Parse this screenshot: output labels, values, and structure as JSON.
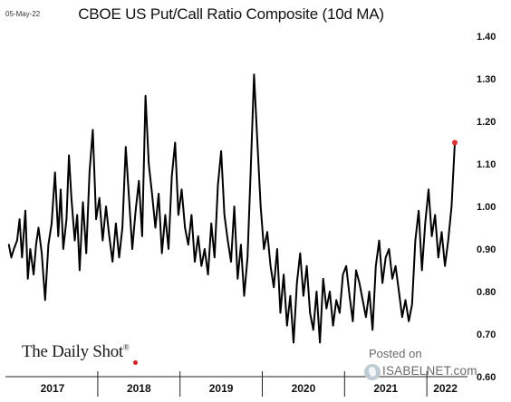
{
  "date_stamp": "05-May-22",
  "source": {
    "brand": "The Daily Shot",
    "registered": "®",
    "posted_on": "Posted on",
    "site": "ISABELNET.com"
  },
  "chart_data": {
    "type": "line",
    "title": "CBOE US Put/Call Ratio Composite (10d MA)",
    "xlabel": "",
    "ylabel": "",
    "ylim": [
      0.6,
      1.4
    ],
    "y_tick_labels": [
      "1.40",
      "1.30",
      "1.20",
      "1.10",
      "1.00",
      "0.90",
      "0.80",
      "0.70",
      "0.60"
    ],
    "y_ticks": [
      1.4,
      1.3,
      1.2,
      1.1,
      1.0,
      0.9,
      0.8,
      0.7,
      0.6
    ],
    "x_range": [
      2016.9,
      2022.45
    ],
    "x_categories": [
      "2017",
      "2018",
      "2019",
      "2020",
      "2021",
      "2022"
    ],
    "x_category_bounds": [
      2016.9,
      2018.0,
      2019.0,
      2020.0,
      2021.0,
      2022.0,
      2022.45
    ],
    "grid": false,
    "line_color": "#000000",
    "end_marker_color": "#e03030",
    "series": [
      {
        "x": [
          2016.92,
          2016.95,
          2016.98,
          2017.02,
          2017.05,
          2017.08,
          2017.12,
          2017.15,
          2017.18,
          2017.22,
          2017.25,
          2017.28,
          2017.32,
          2017.36,
          2017.4,
          2017.44,
          2017.48,
          2017.52,
          2017.55,
          2017.58,
          2017.62,
          2017.65,
          2017.68,
          2017.72,
          2017.75,
          2017.78,
          2017.82,
          2017.86,
          2017.9,
          2017.94,
          2017.98,
          2018.02,
          2018.06,
          2018.1,
          2018.14,
          2018.18,
          2018.22,
          2018.26,
          2018.3,
          2018.34,
          2018.38,
          2018.42,
          2018.46,
          2018.5,
          2018.54,
          2018.58,
          2018.62,
          2018.66,
          2018.7,
          2018.74,
          2018.78,
          2018.82,
          2018.86,
          2018.9,
          2018.94,
          2018.98,
          2019.02,
          2019.06,
          2019.1,
          2019.14,
          2019.18,
          2019.22,
          2019.26,
          2019.3,
          2019.34,
          2019.38,
          2019.42,
          2019.46,
          2019.5,
          2019.54,
          2019.58,
          2019.62,
          2019.66,
          2019.7,
          2019.74,
          2019.78,
          2019.82,
          2019.86,
          2019.9,
          2019.94,
          2019.98,
          2020.02,
          2020.06,
          2020.1,
          2020.14,
          2020.18,
          2020.22,
          2020.26,
          2020.3,
          2020.34,
          2020.38,
          2020.42,
          2020.46,
          2020.5,
          2020.54,
          2020.58,
          2020.62,
          2020.66,
          2020.7,
          2020.74,
          2020.78,
          2020.82,
          2020.86,
          2020.9,
          2020.94,
          2020.98,
          2021.02,
          2021.06,
          2021.1,
          2021.14,
          2021.18,
          2021.22,
          2021.26,
          2021.3,
          2021.34,
          2021.38,
          2021.42,
          2021.46,
          2021.5,
          2021.54,
          2021.58,
          2021.62,
          2021.66,
          2021.7,
          2021.74,
          2021.78,
          2021.82,
          2021.86,
          2021.9,
          2021.94,
          2021.98,
          2022.02,
          2022.06,
          2022.1,
          2022.14,
          2022.18,
          2022.22,
          2022.26,
          2022.3,
          2022.34
        ],
        "values": [
          0.91,
          0.88,
          0.9,
          0.92,
          0.97,
          0.88,
          0.99,
          0.83,
          0.9,
          0.84,
          0.91,
          0.95,
          0.89,
          0.78,
          0.91,
          0.96,
          1.08,
          0.93,
          1.04,
          0.9,
          0.97,
          1.12,
          1.02,
          0.92,
          0.98,
          0.85,
          1.01,
          0.89,
          1.08,
          1.18,
          0.97,
          1.02,
          0.92,
          1.0,
          0.93,
          0.87,
          0.96,
          0.88,
          0.95,
          1.14,
          1.02,
          0.9,
          0.99,
          1.06,
          0.93,
          1.26,
          1.1,
          1.03,
          0.95,
          1.03,
          0.89,
          0.98,
          0.9,
          1.07,
          1.15,
          0.98,
          1.04,
          0.95,
          0.91,
          0.98,
          0.87,
          0.93,
          0.86,
          0.9,
          0.84,
          0.96,
          0.88,
          1.05,
          1.13,
          0.98,
          0.92,
          0.87,
          1.0,
          0.83,
          0.91,
          0.79,
          0.88,
          1.09,
          1.31,
          1.15,
          1.0,
          0.9,
          0.94,
          0.86,
          0.81,
          0.9,
          0.75,
          0.84,
          0.72,
          0.79,
          0.68,
          0.82,
          0.89,
          0.79,
          0.86,
          0.75,
          0.71,
          0.8,
          0.68,
          0.83,
          0.76,
          0.8,
          0.72,
          0.78,
          0.75,
          0.84,
          0.86,
          0.79,
          0.73,
          0.85,
          0.82,
          0.78,
          0.74,
          0.8,
          0.71,
          0.86,
          0.92,
          0.82,
          0.88,
          0.9,
          0.83,
          0.86,
          0.8,
          0.74,
          0.78,
          0.73,
          0.77,
          0.92,
          0.99,
          0.85,
          0.96,
          1.04,
          0.93,
          0.98,
          0.88,
          0.94,
          0.86,
          0.92,
          1.0,
          1.15
        ]
      }
    ]
  }
}
